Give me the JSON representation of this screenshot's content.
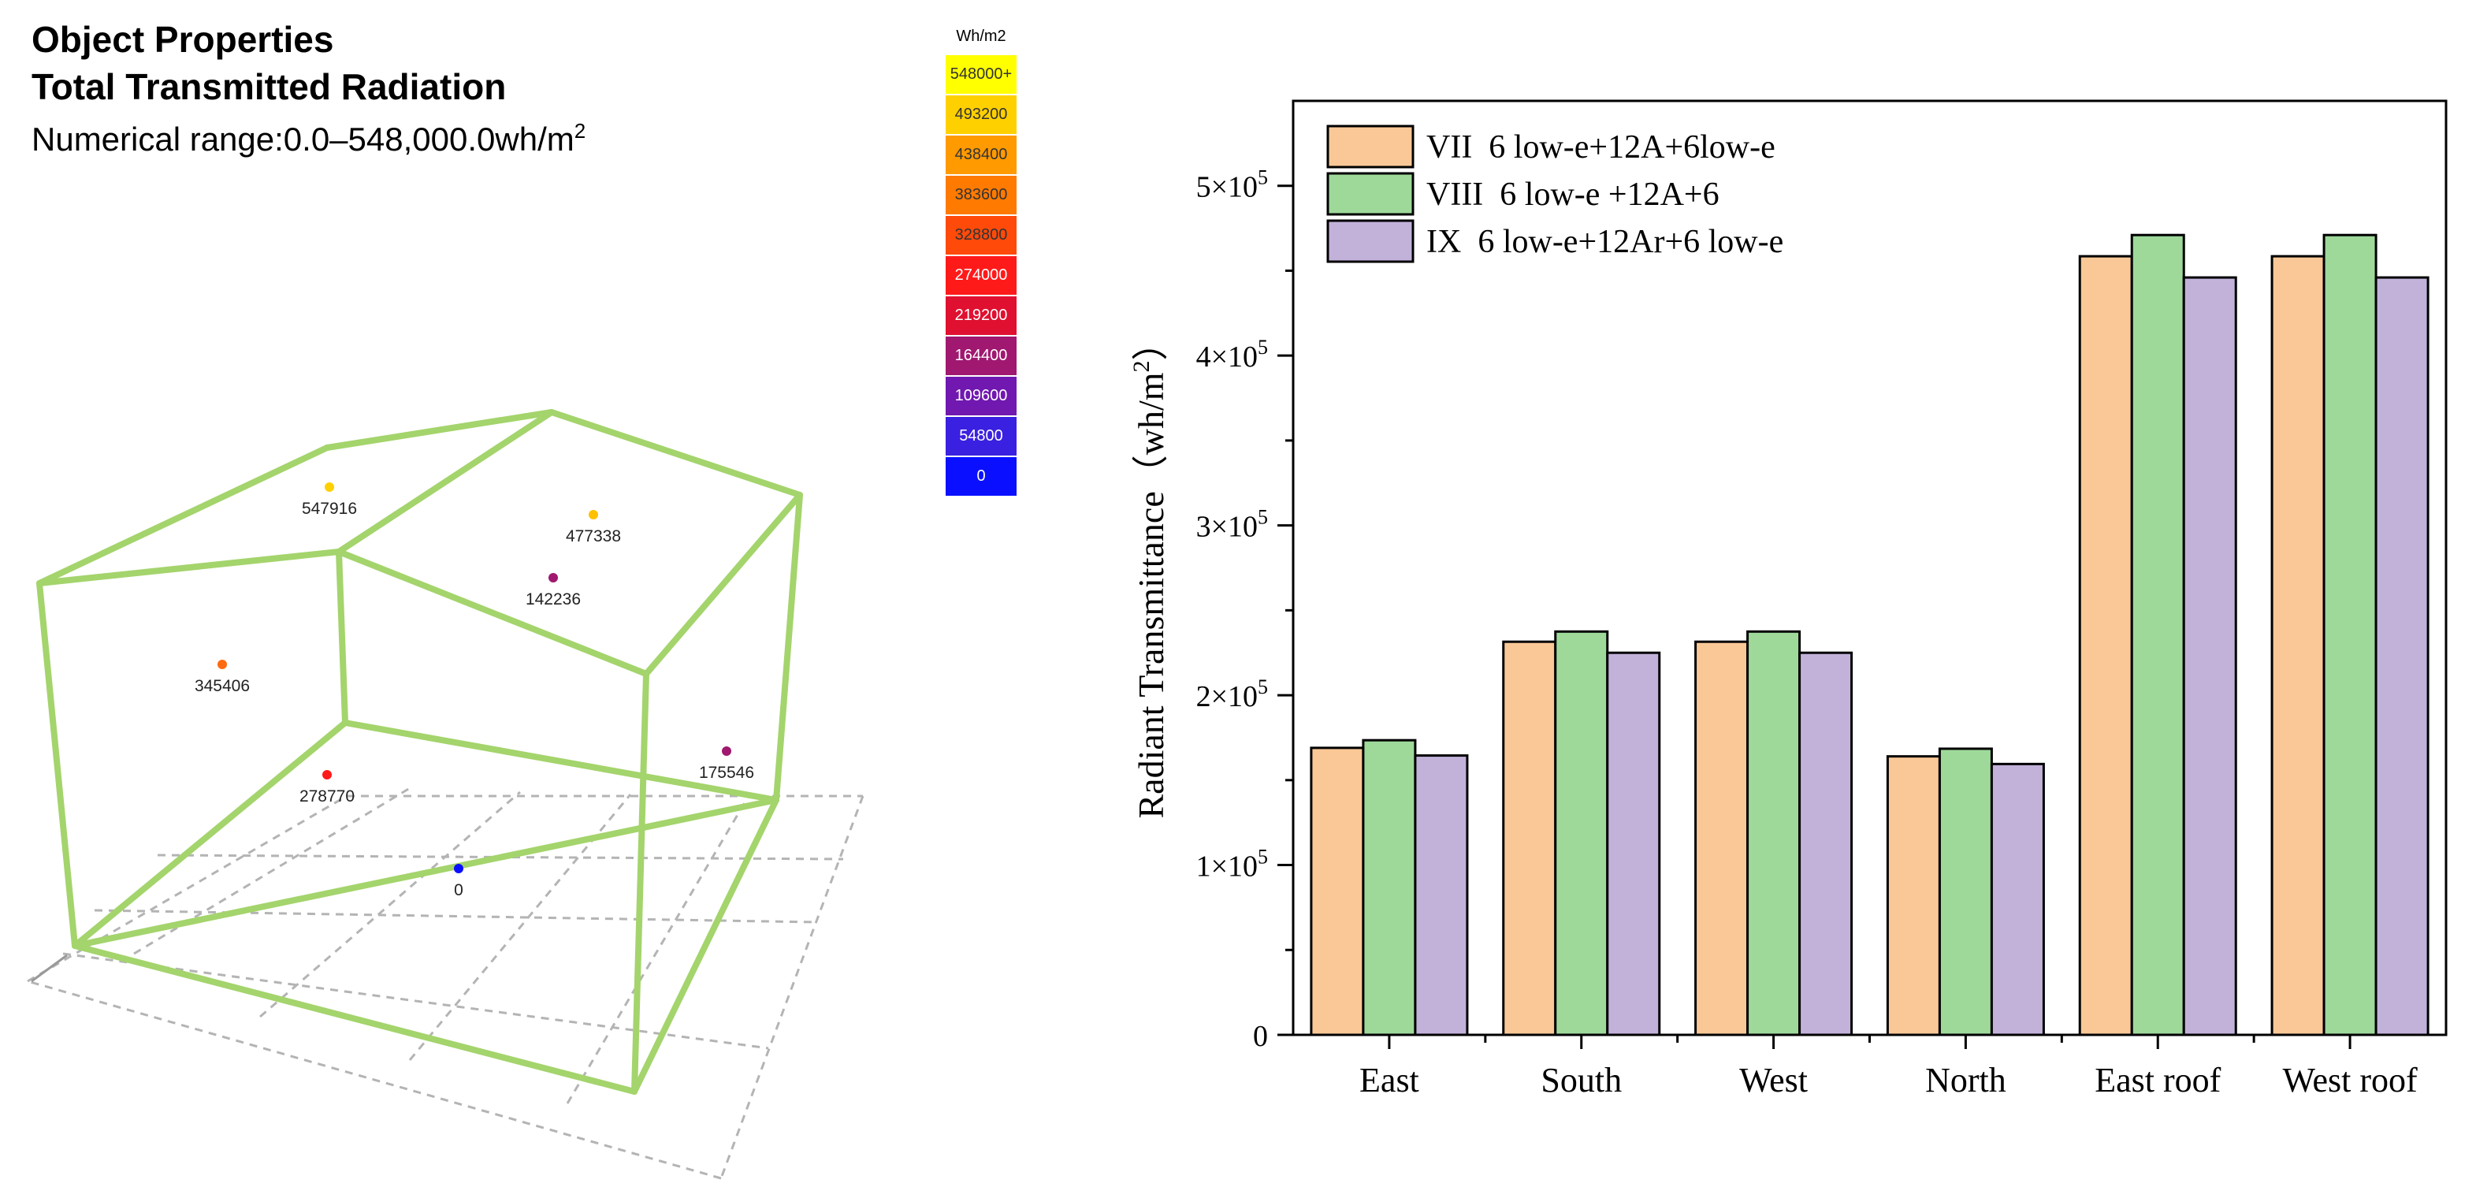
{
  "left_panel": {
    "heading": "Object Properties",
    "subheading": "Total Transmitted Radiation",
    "range_text": "Numerical range:0.0–548,000.0wh/m",
    "range_sup": "2",
    "legend": {
      "unit": "Wh/m2",
      "items": [
        {
          "label": "548000+",
          "color": "#ffff00",
          "text_color": "#333333"
        },
        {
          "label": "493200",
          "color": "#ffd000",
          "text_color": "#333333"
        },
        {
          "label": "438400",
          "color": "#ff9a00",
          "text_color": "#333333"
        },
        {
          "label": "383600",
          "color": "#ff7a00",
          "text_color": "#333333"
        },
        {
          "label": "328800",
          "color": "#ff4a0a",
          "text_color": "#333333"
        },
        {
          "label": "274000",
          "color": "#ff1a1a",
          "text_color": "#ffffff"
        },
        {
          "label": "219200",
          "color": "#e01030",
          "text_color": "#ffffff"
        },
        {
          "label": "164400",
          "color": "#a01870",
          "text_color": "#ffffff"
        },
        {
          "label": "109600",
          "color": "#7018b0",
          "text_color": "#ffffff"
        },
        {
          "label": "54800",
          "color": "#3a20e0",
          "text_color": "#ffffff"
        },
        {
          "label": "0",
          "color": "#0a10ff",
          "text_color": "#ffffff"
        }
      ]
    },
    "markers": [
      {
        "label": "547916",
        "color": "#ffd000"
      },
      {
        "label": "477338",
        "color": "#ffc000"
      },
      {
        "label": "142236",
        "color": "#a01870"
      },
      {
        "label": "345406",
        "color": "#ff6a10"
      },
      {
        "label": "175546",
        "color": "#a01870"
      },
      {
        "label": "278770",
        "color": "#ff1a1a"
      },
      {
        "label": "0",
        "color": "#0a10ff"
      }
    ]
  },
  "chart_data": {
    "type": "bar",
    "categories": [
      "East",
      "South",
      "West",
      "North",
      "East roof",
      "West roof"
    ],
    "series": [
      {
        "name": "VII  6 low-e+12A+6low-e",
        "color": "#fac896",
        "values": [
          169000,
          231500,
          231500,
          164000,
          458500,
          458500
        ]
      },
      {
        "name": "VIII  6 low-e +12A+6",
        "color": "#9ed99a",
        "values": [
          173500,
          237500,
          237500,
          168500,
          471000,
          471000
        ]
      },
      {
        "name": "IX  6 low-e+12Ar+6 low-e",
        "color": "#c2b2da",
        "values": [
          164500,
          225000,
          225000,
          159500,
          446000,
          446000
        ]
      }
    ],
    "ylabel": "Radiant Transmittance（wh/m",
    "ylabel_sup": "2",
    "ylabel_close": "）",
    "ylim": [
      0,
      550000
    ],
    "yticks": [
      {
        "value": 0,
        "mant": "0",
        "exp": ""
      },
      {
        "value": 100000,
        "mant": "1×10",
        "exp": "5"
      },
      {
        "value": 200000,
        "mant": "2×10",
        "exp": "5"
      },
      {
        "value": 300000,
        "mant": "3×10",
        "exp": "5"
      },
      {
        "value": 400000,
        "mant": "4×10",
        "exp": "5"
      },
      {
        "value": 500000,
        "mant": "5×10",
        "exp": "5"
      }
    ]
  }
}
